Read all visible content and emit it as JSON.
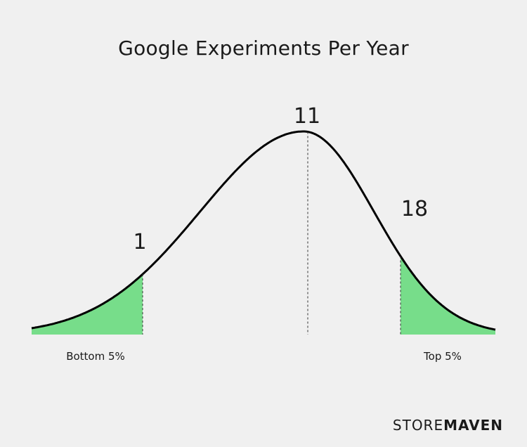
{
  "chart_data": {
    "type": "area",
    "title": "Google Experiments Per Year",
    "description_curve": "normal-distribution",
    "markers": [
      {
        "label": "1",
        "region_label": "Bottom 5%"
      },
      {
        "label": "11",
        "region_label": ""
      },
      {
        "label": "18",
        "region_label": "Top 5%"
      }
    ],
    "shaded_color": "#77dd8a",
    "line_color": "#000000"
  },
  "brand": {
    "part1": "STORE",
    "part2": "MAVEN"
  }
}
